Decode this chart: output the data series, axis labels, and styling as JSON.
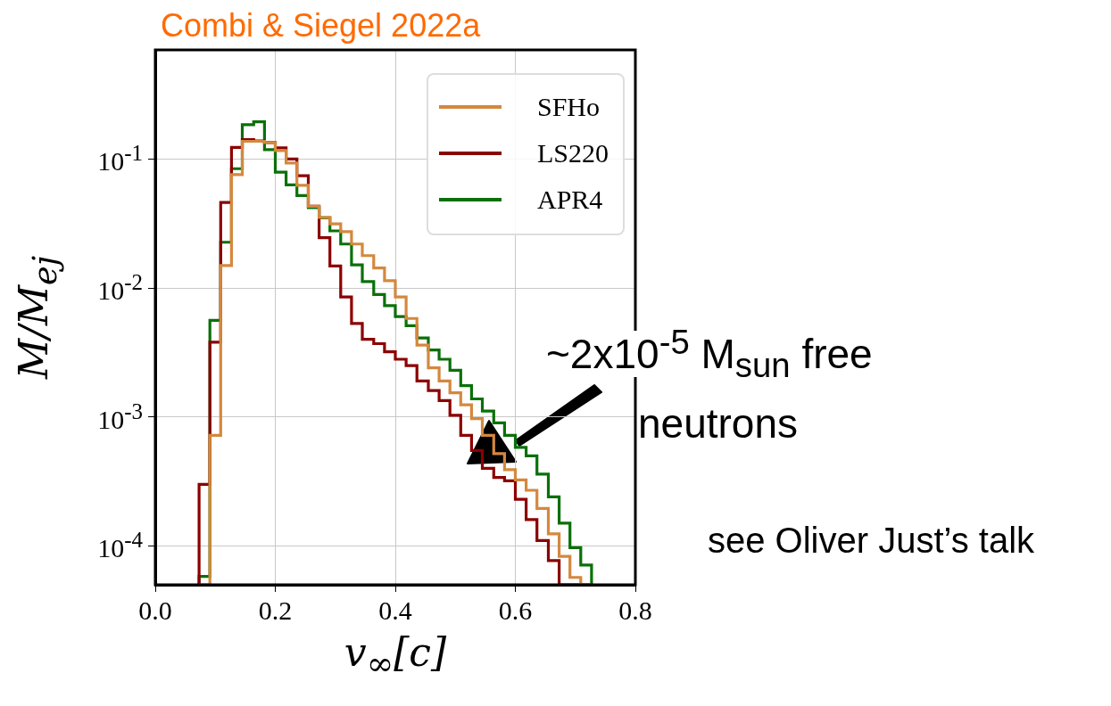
{
  "chart_data": {
    "type": "histogram",
    "title": "Combi & Siegel 2022a",
    "xlabel": "v$_{∞}$[c]",
    "ylabel": "M/M$_{ej}$",
    "bins": [
      0.073,
      0.091,
      0.109,
      0.127,
      0.145,
      0.164,
      0.182,
      0.2,
      0.218,
      0.236,
      0.255,
      0.273,
      0.291,
      0.309,
      0.327,
      0.345,
      0.364,
      0.382,
      0.4,
      0.418,
      0.436,
      0.455,
      0.473,
      0.491,
      0.509,
      0.527,
      0.545,
      0.564,
      0.582,
      0.6,
      0.618,
      0.636,
      0.655,
      0.673,
      0.691,
      0.709,
      0.727
    ],
    "series": [
      {
        "name": "SFHo",
        "color": "#d4883e",
        "values": [
          null,
          0.00072,
          0.0149,
          0.0755,
          0.137,
          0.137,
          0.134,
          0.116,
          0.093,
          0.0625,
          0.043,
          0.0352,
          0.0314,
          0.0273,
          0.0219,
          0.0178,
          0.0143,
          0.0114,
          0.0085,
          0.0058,
          0.0036,
          0.0024,
          0.0019,
          0.00154,
          0.00124,
          0.00097,
          0.00072,
          0.00052,
          0.00039,
          0.000325,
          0.00027,
          0.000195,
          0.000124,
          8.3e-05,
          5.7e-05,
          null
        ]
      },
      {
        "name": "LS220",
        "color": "#8b0000",
        "values": [
          0.0003,
          0.0038,
          0.046,
          0.123,
          0.141,
          0.138,
          0.134,
          0.122,
          0.1,
          0.074,
          0.043,
          0.0245,
          0.0148,
          0.0085,
          0.0053,
          0.004,
          0.0037,
          0.0032,
          0.0028,
          0.0025,
          0.0019,
          0.0016,
          0.00134,
          0.00103,
          0.00072,
          0.00055,
          0.0004,
          0.00034,
          0.00032,
          0.00023,
          0.00016,
          0.00011,
          7.7e-05,
          null,
          null,
          null
        ]
      },
      {
        "name": "APR4",
        "color": "#0a700a",
        "values": [
          5.8e-05,
          0.0056,
          0.0226,
          0.084,
          0.184,
          0.194,
          0.118,
          0.079,
          0.063,
          0.052,
          0.042,
          0.035,
          0.0277,
          0.0219,
          0.0151,
          0.0112,
          0.0089,
          0.0073,
          0.006,
          0.0051,
          0.0041,
          0.0033,
          0.0028,
          0.0023,
          0.00175,
          0.00138,
          0.00111,
          0.0009,
          0.00072,
          0.00058,
          0.0005,
          0.00036,
          0.00024,
          0.00015,
          9.7e-05,
          7.1e-05
        ]
      }
    ],
    "log": "y",
    "xlim": [
      0,
      0.8
    ],
    "xticks": [
      {
        "value": 0,
        "label": "0.0"
      },
      {
        "value": 0.2,
        "label": "0.2"
      },
      {
        "value": 0.4,
        "label": "0.4"
      },
      {
        "value": 0.6,
        "label": "0.6"
      },
      {
        "value": 0.8,
        "label": "0.8"
      }
    ],
    "ylim": [
      5e-05,
      0.7
    ],
    "yticks": [
      {
        "value": 0.0001,
        "label": "10$^{-4}$"
      },
      {
        "value": 0.001,
        "label": "10$^{-3}$"
      },
      {
        "value": 0.01,
        "label": "10$^{-2}$"
      },
      {
        "value": 0.1,
        "label": "10$^{-1}$"
      }
    ],
    "grid": true,
    "legend": "top right",
    "annotations": [
      "~2x10$^{-5}$ M$_{sun}$ free neutrons",
      "see Oliver Just’s talk"
    ]
  }
}
